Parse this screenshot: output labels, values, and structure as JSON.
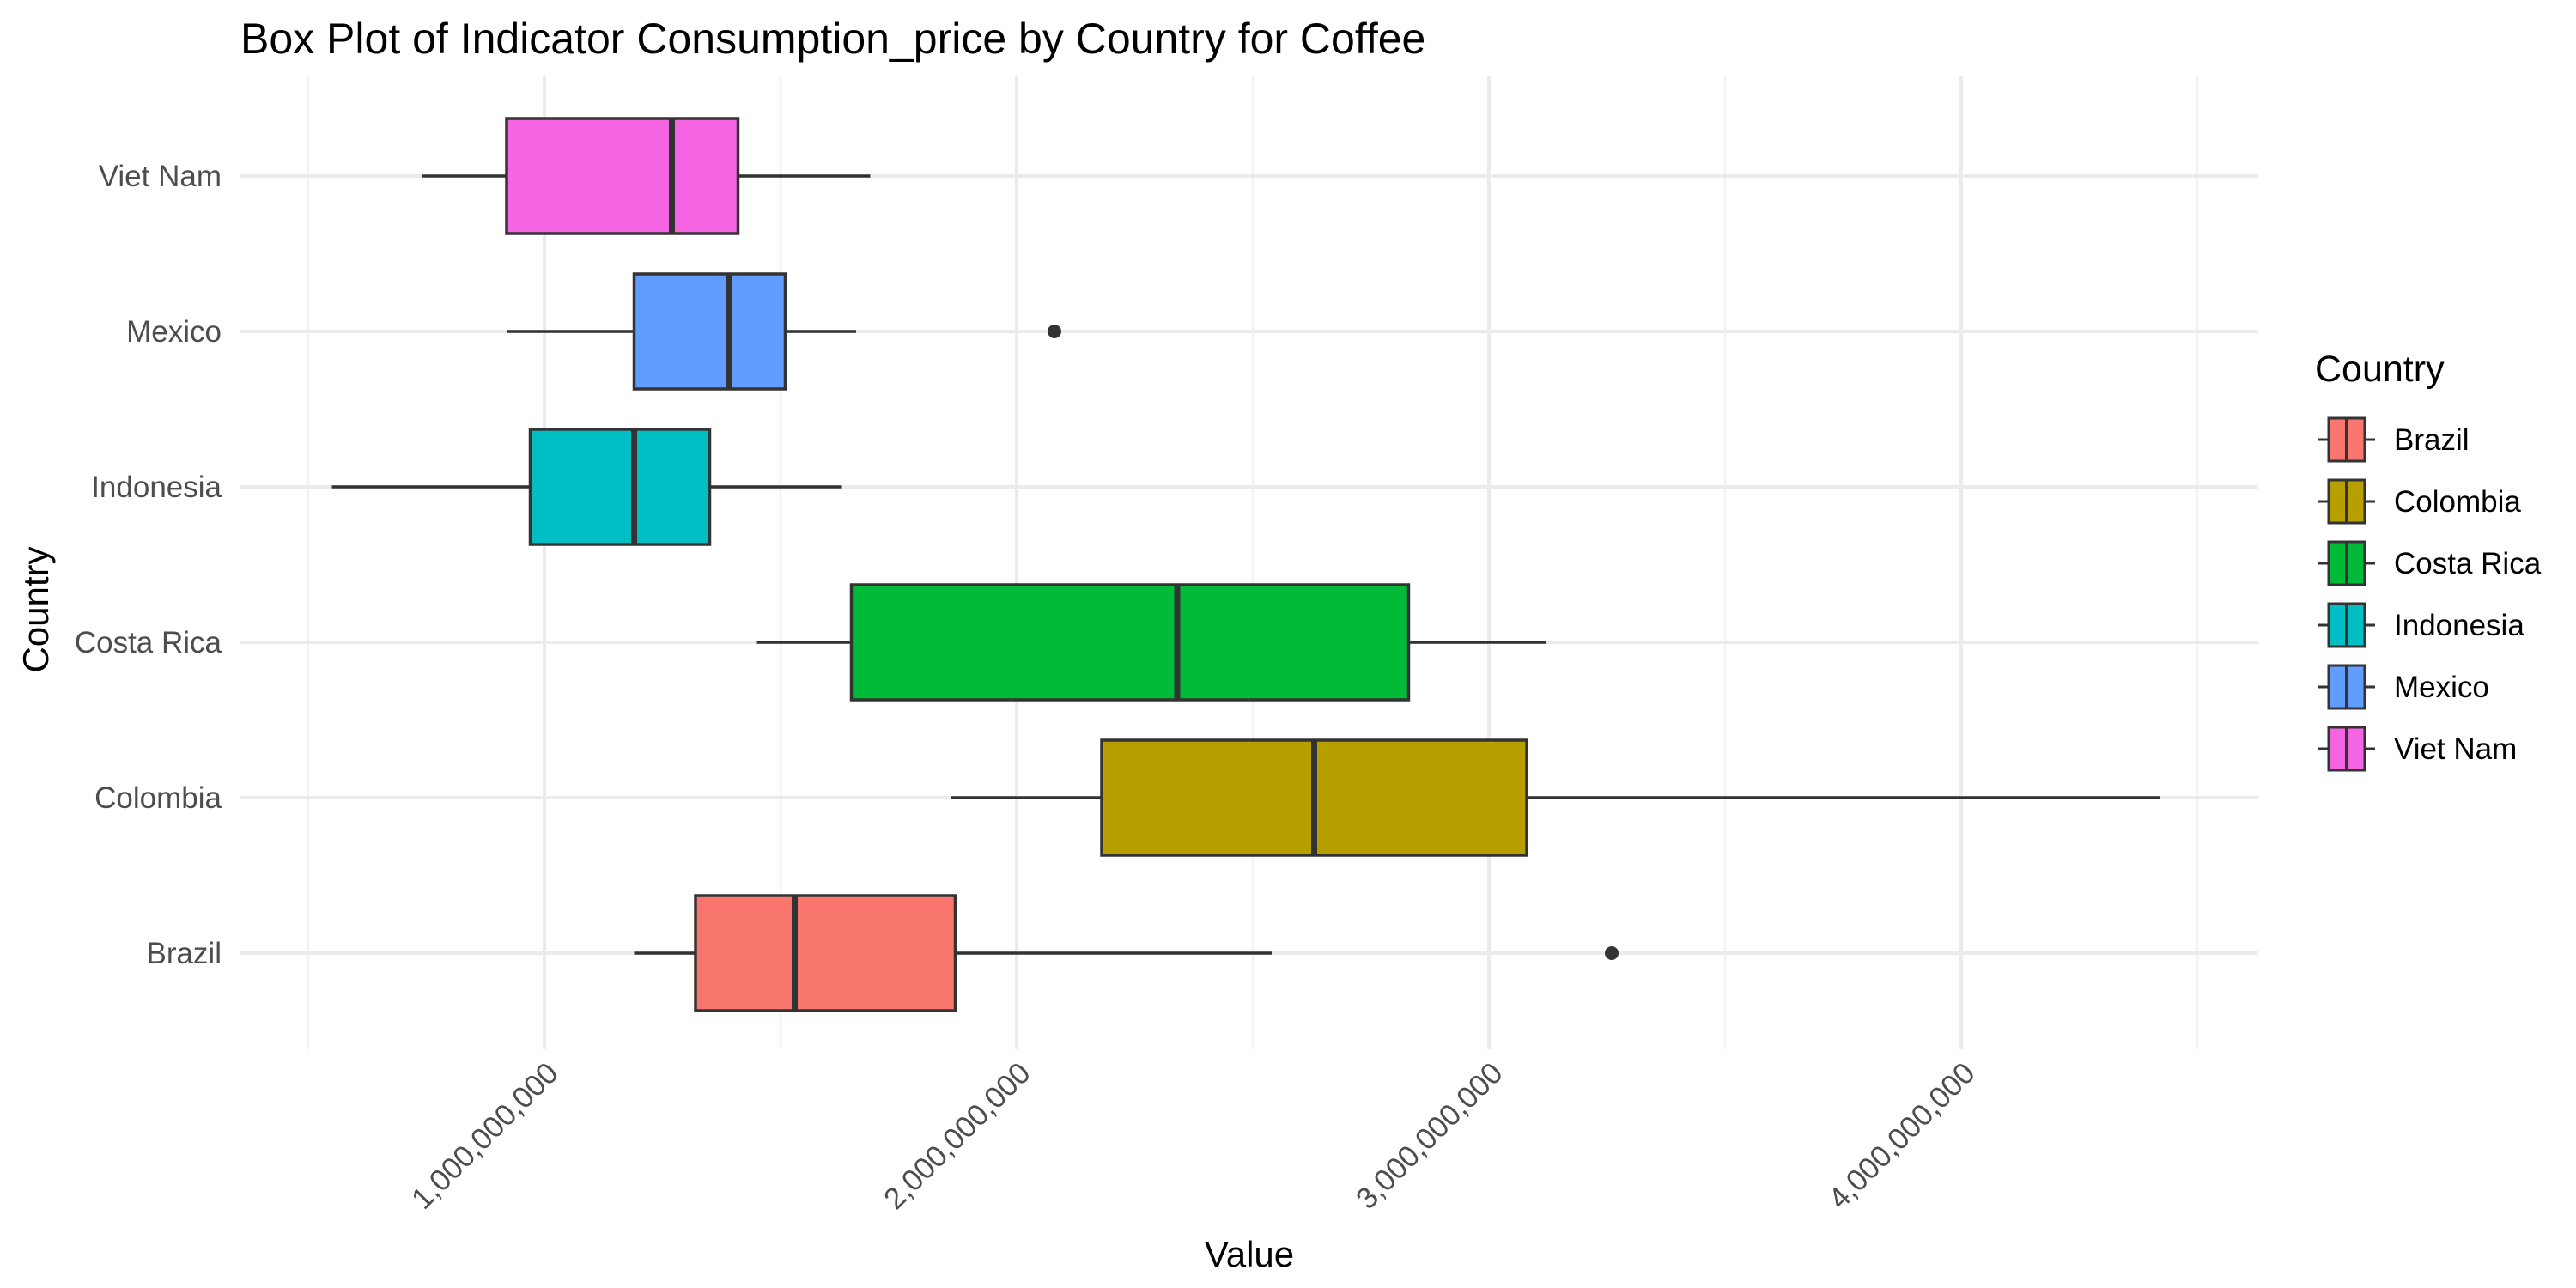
{
  "chart_data": {
    "type": "boxplot",
    "title": "Box Plot of Indicator Consumption_price by Country for Coffee",
    "xlabel": "Value",
    "ylabel": "Country",
    "orientation": "horizontal",
    "xlim": [
      400000000,
      4700000000
    ],
    "x_ticks": [
      1000000000,
      2000000000,
      3000000000,
      4000000000
    ],
    "x_tick_labels": [
      "1,000,000,000",
      "2,000,000,000",
      "3,000,000,000",
      "4,000,000,000"
    ],
    "grid": true,
    "legend": {
      "title": "Country",
      "position": "right"
    },
    "categories": [
      "Viet Nam",
      "Mexico",
      "Indonesia",
      "Costa Rica",
      "Colombia",
      "Brazil"
    ],
    "series": [
      {
        "name": "Brazil",
        "color": "#F8766D",
        "whisker_low": 1190000000,
        "q1": 1320000000,
        "median": 1530000000,
        "q3": 1870000000,
        "whisker_high": 2540000000,
        "outliers": [
          3260000000
        ]
      },
      {
        "name": "Colombia",
        "color": "#B79F00",
        "whisker_low": 1860000000,
        "q1": 2180000000,
        "median": 2630000000,
        "q3": 3080000000,
        "whisker_high": 4420000000,
        "outliers": []
      },
      {
        "name": "Costa Rica",
        "color": "#00BA38",
        "whisker_low": 1450000000,
        "q1": 1650000000,
        "median": 2340000000,
        "q3": 2830000000,
        "whisker_high": 3120000000,
        "outliers": []
      },
      {
        "name": "Indonesia",
        "color": "#00BFC4",
        "whisker_low": 550000000,
        "q1": 970000000,
        "median": 1190000000,
        "q3": 1350000000,
        "whisker_high": 1630000000,
        "outliers": []
      },
      {
        "name": "Mexico",
        "color": "#619CFF",
        "whisker_low": 920000000,
        "q1": 1190000000,
        "median": 1390000000,
        "q3": 1510000000,
        "whisker_high": 1660000000,
        "outliers": [
          2080000000
        ]
      },
      {
        "name": "Viet Nam",
        "color": "#F564E3",
        "whisker_low": 740000000,
        "q1": 920000000,
        "median": 1270000000,
        "q3": 1410000000,
        "whisker_high": 1690000000,
        "outliers": []
      }
    ]
  }
}
